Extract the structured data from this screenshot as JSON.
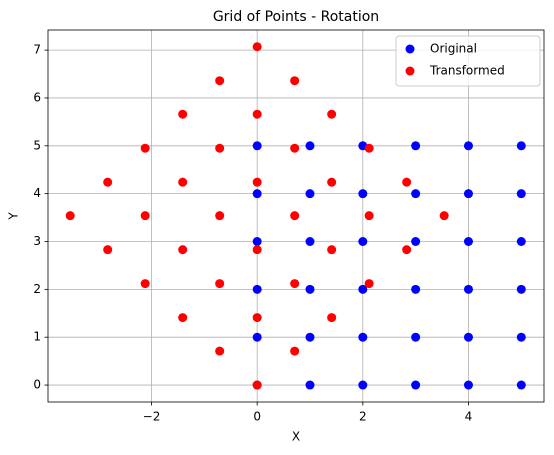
{
  "chart_data": {
    "type": "scatter",
    "title": "Grid of Points - Rotation",
    "xlabel": "X",
    "ylabel": "Y",
    "xlim": [
      -3.96,
      5.43
    ],
    "ylim": [
      -0.354,
      7.42
    ],
    "xticks": [
      {
        "value": -2,
        "label": "−2"
      },
      0,
      2,
      4
    ],
    "yticks": [
      0,
      1,
      2,
      3,
      4,
      5,
      6,
      7
    ],
    "grid": true,
    "legend": "upper right",
    "series": [
      {
        "name": "Original",
        "color": "blue",
        "x": [
          0,
          0,
          0,
          0,
          0,
          0,
          1,
          1,
          1,
          1,
          1,
          1,
          2,
          2,
          2,
          2,
          2,
          2,
          3,
          3,
          3,
          3,
          3,
          3,
          4,
          4,
          4,
          4,
          4,
          4,
          5,
          5,
          5,
          5,
          5,
          5
        ],
        "values": [
          0,
          1,
          2,
          3,
          4,
          5,
          0,
          1,
          2,
          3,
          4,
          5,
          0,
          1,
          2,
          3,
          4,
          5,
          0,
          1,
          2,
          3,
          4,
          5,
          0,
          1,
          2,
          3,
          4,
          5,
          0,
          1,
          2,
          3,
          4,
          5
        ]
      },
      {
        "name": "Transformed",
        "color": "red",
        "x": [
          0,
          -0.71,
          -1.41,
          -2.12,
          -2.83,
          -3.54,
          0.71,
          0,
          -0.71,
          -1.41,
          -2.12,
          -2.83,
          1.41,
          0.71,
          0,
          -0.71,
          -1.41,
          -2.12,
          2.12,
          1.41,
          0.71,
          0,
          -0.71,
          -1.41,
          2.83,
          2.12,
          1.41,
          0.71,
          0,
          -0.71,
          3.54,
          2.83,
          2.12,
          1.41,
          0.71,
          0
        ],
        "values": [
          0,
          0.71,
          1.41,
          2.12,
          2.83,
          3.54,
          0.71,
          1.41,
          2.12,
          2.83,
          3.54,
          4.24,
          1.41,
          2.12,
          2.83,
          3.54,
          4.24,
          4.95,
          2.12,
          2.83,
          3.54,
          4.24,
          4.95,
          5.66,
          2.83,
          3.54,
          4.24,
          4.95,
          5.66,
          6.36,
          3.54,
          4.24,
          4.95,
          5.66,
          6.36,
          7.07
        ]
      }
    ]
  }
}
